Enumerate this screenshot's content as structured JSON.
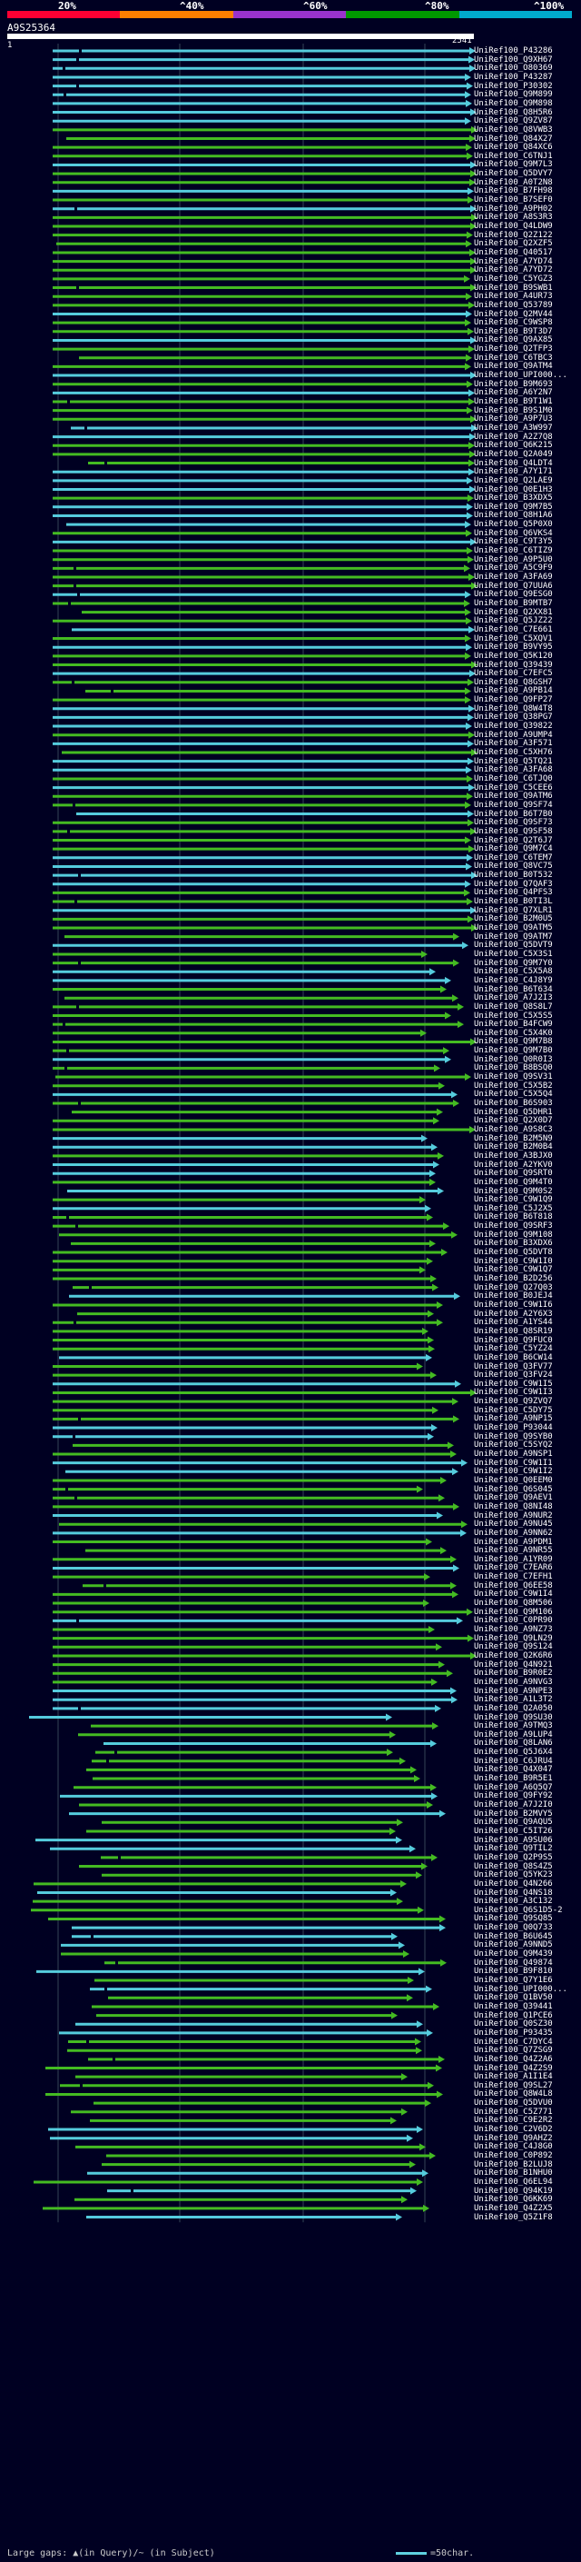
{
  "query": {
    "id": "A9S25364",
    "start": "1",
    "end": "2541"
  },
  "scale": [
    {
      "label": "20%"
    },
    {
      "label": "^40%"
    },
    {
      "label": "^60%"
    },
    {
      "label": "^80%"
    },
    {
      "label": "^100%"
    }
  ],
  "colors": {
    "band1": "#ff0033",
    "band2": "#ff7f00",
    "band3": "#9933cc",
    "band4": "#009900",
    "band5": "#00aacc",
    "hit_green": "#44bb22",
    "hit_cyan": "#55ccdd",
    "hit_dark": "#33aa33",
    "background": "#000022"
  },
  "legend": {
    "text": "Large gaps: ▲(in Query)/~ (in Subject)",
    "scale_text": "=50char."
  },
  "hits": [
    "UniRef100_P43286",
    "UniRef100_Q9XH67",
    "UniRef100_O80369",
    "UniRef100_P43287",
    "UniRef100_P30302",
    "UniRef100_Q9M899",
    "UniRef100_Q9M898",
    "UniRef100_Q8H5R6",
    "UniRef100_Q9ZV87",
    "UniRef100_Q8VWB3",
    "UniRef100_Q84X27",
    "UniRef100_Q84XC6",
    "UniRef100_C6TNJ1",
    "UniRef100_Q9M7L3",
    "UniRef100_Q5DVY7",
    "UniRef100_A0T2N8",
    "UniRef100_B7FH98",
    "UniRef100_B7SEF0",
    "UniRef100_A9PH02",
    "UniRef100_A8S3R3",
    "UniRef100_Q4LDW9",
    "UniRef100_Q2Z122",
    "UniRef100_Q2XZF5",
    "UniRef100_Q40517",
    "UniRef100_A7YD74",
    "UniRef100_A7YD72",
    "UniRef100_C5YGZ3",
    "UniRef100_B9SWB1",
    "UniRef100_A4UR73",
    "UniRef100_Q53789",
    "UniRef100_Q2MV44",
    "UniRef100_C9WSP8",
    "UniRef100_B9T3D7",
    "UniRef100_Q9AX85",
    "UniRef100_Q2TFP3",
    "UniRef100_C6TBC3",
    "UniRef100_Q9ATM4",
    "UniRef100_UPI000...",
    "UniRef100_B9M693",
    "UniRef100_A6Y2N7",
    "UniRef100_B9T1W1",
    "UniRef100_B9S1M0",
    "UniRef100_A9P7U3",
    "UniRef100_A3W997",
    "UniRef100_A2Z7Q8",
    "UniRef100_Q6K215",
    "UniRef100_Q2A049",
    "UniRef100_Q4LDT4",
    "UniRef100_A7Y171",
    "UniRef100_Q2LAE9",
    "UniRef100_Q0E1H3",
    "UniRef100_B3XDX5",
    "UniRef100_Q9M7B5",
    "UniRef100_Q8H1A6",
    "UniRef100_Q5P0X0",
    "UniRef100_Q6VKS4",
    "UniRef100_C9T3Y5",
    "UniRef100_C6TIZ9",
    "UniRef100_A9P5U0",
    "UniRef100_A5C9F9",
    "UniRef100_A3FA69",
    "UniRef100_Q7UUA6",
    "UniRef100_Q9ESG0",
    "UniRef100_B9MTB7",
    "UniRef100_Q2XX81",
    "UniRef100_Q5JZ22",
    "UniRef100_C7E661",
    "UniRef100_C5XQV1",
    "UniRef100_B9VY95",
    "UniRef100_Q5K120",
    "UniRef100_Q39439",
    "UniRef100_C7EFC5",
    "UniRef100_Q8GSH7",
    "UniRef100_A9PB14",
    "UniRef100_Q9FP27",
    "UniRef100_Q8W4T8",
    "UniRef100_Q38PG7",
    "UniRef100_Q39822",
    "UniRef100_A9UMP4",
    "UniRef100_A3F571",
    "UniRef100_C5XH76",
    "UniRef100_Q5TQ21",
    "UniRef100_A3FA68",
    "UniRef100_C6TJQ0",
    "UniRef100_C5CEE6",
    "UniRef100_Q9ATM6",
    "UniRef100_Q9SF74",
    "UniRef100_B6T7B0",
    "UniRef100_Q9SF73",
    "UniRef100_Q9SF58",
    "UniRef100_Q2T6J7",
    "UniRef100_Q9M7C4",
    "UniRef100_C6TEM7",
    "UniRef100_Q8VC75",
    "UniRef100_B0T532",
    "UniRef100_Q7QAF3",
    "UniRef100_Q4PFS3",
    "UniRef100_B0TI3L",
    "UniRef100_Q7XLR1",
    "UniRef100_B2M0U5",
    "UniRef100_Q9ATM5",
    "UniRef100_Q9ATM7",
    "UniRef100_Q5DVT9",
    "UniRef100_C5X3S1",
    "UniRef100_Q9M7Y0",
    "UniRef100_C5X5A8",
    "UniRef100_C4J8Y9",
    "UniRef100_B6T634",
    "UniRef100_A7J2I3",
    "UniRef100_Q8S8L7",
    "UniRef100_C5X5S5",
    "UniRef100_B4FCW9",
    "UniRef100_C5X4K0",
    "UniRef100_Q9M7B8",
    "UniRef100_Q9M7B0",
    "UniRef100_Q0R0I3",
    "UniRef100_B8BSQ0",
    "UniRef100_Q9SV31",
    "UniRef100_C5X5B2",
    "UniRef100_C5X5Q4",
    "UniRef100_B6S903",
    "UniRef100_Q5DHR1",
    "UniRef100_Q2X0D7",
    "UniRef100_A9S8C3",
    "UniRef100_B2M5N9",
    "UniRef100_B2M0B4",
    "UniRef100_A3BJX0",
    "UniRef100_A2YKV0",
    "UniRef100_Q9SRT0",
    "UniRef100_Q9M4T0",
    "UniRef100_Q9M0S2",
    "UniRef100_C9W1Q9",
    "UniRef100_C5J2X5",
    "UniRef100_B6T818",
    "UniRef100_Q9SRF3",
    "UniRef100_Q9M108",
    "UniRef100_B3XDX6",
    "UniRef100_Q5DVT8",
    "UniRef100_C9W1I0",
    "UniRef100_C9W1Q7",
    "UniRef100_B2D256",
    "UniRef100_Q27Q03",
    "UniRef100_B0JEJ4",
    "UniRef100_C9W1I6",
    "UniRef100_A2Y6X3",
    "UniRef100_A1YS44",
    "UniRef100_Q8SR19",
    "UniRef100_Q9FUC0",
    "UniRef100_C5YZ24",
    "UniRef100_B6CW14",
    "UniRef100_Q3FV77",
    "UniRef100_Q3FV24",
    "UniRef100_C9W1I5",
    "UniRef100_C9W1I3",
    "UniRef100_Q9ZVQ7",
    "UniRef100_C5DY75",
    "UniRef100_A9NP15",
    "UniRef100_P93044",
    "UniRef100_Q9SYB0",
    "UniRef100_C5SYQ2",
    "UniRef100_A9NSP1",
    "UniRef100_C9W1I1",
    "UniRef100_C9W1I2",
    "UniRef100_Q0EEM0",
    "UniRef100_Q6S045",
    "UniRef100_Q9AEV1",
    "UniRef100_Q8NI48",
    "UniRef100_A9NUR2",
    "UniRef100_A9NU45",
    "UniRef100_A9NN62",
    "UniRef100_A9PDM1",
    "UniRef100_A9NR55",
    "UniRef100_A1YR09",
    "UniRef100_C7EAR6",
    "UniRef100_C7EFH1",
    "UniRef100_Q6EE58",
    "UniRef100_C9W1I4",
    "UniRef100_Q8M506",
    "UniRef100_Q9M106",
    "UniRef100_C0PR90",
    "UniRef100_A9NZ73",
    "UniRef100_Q9LN29",
    "UniRef100_Q9S124",
    "UniRef100_Q2K6R6",
    "UniRef100_Q4N921",
    "UniRef100_B9R0E2",
    "UniRef100_A9NVG3",
    "UniRef100_A9NPE3",
    "UniRef100_A1L3T2",
    "UniRef100_Q2A050",
    "UniRef100_Q9SU30",
    "UniRef100_A9TMQ3",
    "UniRef100_A9LUP4",
    "UniRef100_Q8LAN6",
    "UniRef100_Q5J6X4",
    "UniRef100_C6JRU4",
    "UniRef100_Q4X047",
    "UniRef100_B9R5E1",
    "UniRef100_A6Q5Q7",
    "UniRef100_Q9FY92",
    "UniRef100_A7J2I0",
    "UniRef100_B2MVY5",
    "UniRef100_Q9AQU5",
    "UniRef100_C5IT26",
    "UniRef100_A9SU06",
    "UniRef100_Q9TIL2",
    "UniRef100_Q2P9S5",
    "UniRef100_Q8S4Z5",
    "UniRef100_Q5YK23",
    "UniRef100_Q4N266",
    "UniRef100_Q4NS18",
    "UniRef100_A3C132",
    "UniRef100_Q6S1D5-2",
    "UniRef100_Q9SQ85",
    "UniRef100_Q0Q733",
    "UniRef100_B6U645",
    "UniRef100_A9NND5",
    "UniRef100_Q9M439",
    "UniRef100_Q49874",
    "UniRef100_B9F810",
    "UniRef100_Q7Y1E6",
    "UniRef100_UPI000...",
    "UniRef100_Q1BV50",
    "UniRef100_Q39441",
    "UniRef100_Q1PCE6",
    "UniRef100_Q0SZ30",
    "UniRef100_P93435",
    "UniRef100_C7DYC4",
    "UniRef100_Q7ZSG9",
    "UniRef100_Q4Z2A6",
    "UniRef100_Q4Z2S9",
    "UniRef100_A1I1E4",
    "UniRef100_Q9SL27",
    "UniRef100_Q8W4L8",
    "UniRef100_Q5DVU0",
    "UniRef100_C5Z771",
    "UniRef100_C9E2R2",
    "UniRef100_C2V6D2",
    "UniRef100_Q9AHZ2",
    "UniRef100_C4J8G0",
    "UniRef100_C0P892",
    "UniRef100_B2LUJ8",
    "UniRef100_B1NHU0",
    "UniRef100_Q6EL94",
    "UniRef100_Q94K19",
    "UniRef100_Q6KK69",
    "UniRef100_Q4Z2X5",
    "UniRef100_Q5Z1F8"
  ]
}
